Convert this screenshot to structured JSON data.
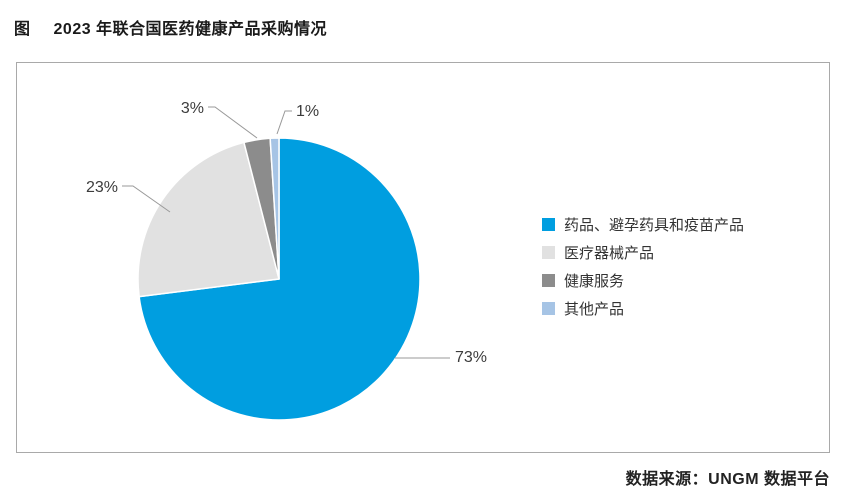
{
  "figure": {
    "title_prefix": "图",
    "title": "2023 年联合国医药健康产品采购情况",
    "source": "数据来源：UNGM 数据平台"
  },
  "chart_data": {
    "type": "pie",
    "title": "2023 年联合国医药健康产品采购情况",
    "categories": [
      "药品、避孕药具和疫苗产品",
      "医疗器械产品",
      "健康服务",
      "其他产品"
    ],
    "values": [
      73,
      23,
      3,
      1
    ],
    "unit": "%",
    "labels": [
      "73%",
      "23%",
      "3%",
      "1%"
    ],
    "colors": [
      "#009ee0",
      "#e1e1e1",
      "#8c8c8c",
      "#a6c4e5"
    ],
    "start_angle": "12-oclock",
    "direction": "clockwise",
    "legend_position": "right",
    "slice_border_color": "#ffffff",
    "leader_line_color": "#999999",
    "source": "数据来源：UNGM 数据平台"
  }
}
